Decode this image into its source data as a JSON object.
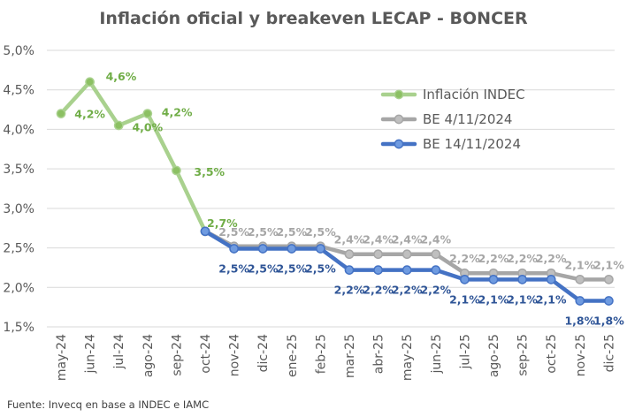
{
  "chart_data": {
    "type": "line",
    "title": "Inflación oficial y breakeven LECAP - BONCER",
    "source": "Fuente: Invecq en base a INDEC e IAMC",
    "categories": [
      "may-24",
      "jun-24",
      "jul-24",
      "ago-24",
      "sep-24",
      "oct-24",
      "nov-24",
      "dic-24",
      "ene-25",
      "feb-25",
      "mar-25",
      "abr-25",
      "may-25",
      "jun-25",
      "jul-25",
      "ago-25",
      "sep-25",
      "oct-25",
      "nov-25",
      "dic-25"
    ],
    "ylim": [
      1.5,
      5.0
    ],
    "y_ticks": [
      1.5,
      2.0,
      2.5,
      3.0,
      3.5,
      4.0,
      4.5,
      5.0
    ],
    "y_tick_labels": [
      "1,5%",
      "2,0%",
      "2,5%",
      "3,0%",
      "3,5%",
      "4,0%",
      "4,5%",
      "5,0%"
    ],
    "grid": true,
    "legend_position": "top-right",
    "series": [
      {
        "name": "Inflación INDEC",
        "color": "#a9d18e",
        "marker_color": "#8cc063",
        "label_color": "#70ad47",
        "values": [
          4.2,
          4.6,
          4.05,
          4.2,
          3.48,
          2.71,
          null,
          null,
          null,
          null,
          null,
          null,
          null,
          null,
          null,
          null,
          null,
          null,
          null,
          null
        ],
        "labels": [
          "",
          "4,6%",
          "",
          "4,2%",
          "3,5%",
          "2,7%",
          "",
          "",
          "",
          "",
          "",
          "",
          "",
          "",
          "",
          "",
          "",
          "",
          "",
          ""
        ]
      },
      {
        "name": "BE 4/11/2024",
        "color": "#a6a6a6",
        "marker_color": "#bfbfbf",
        "label_color": "#a6a6a6",
        "values": [
          null,
          null,
          null,
          null,
          null,
          2.71,
          2.52,
          2.52,
          2.52,
          2.52,
          2.42,
          2.42,
          2.42,
          2.42,
          2.18,
          2.18,
          2.18,
          2.18,
          2.1,
          2.1
        ],
        "labels": [
          "",
          "",
          "",
          "",
          "",
          "",
          "2,5%",
          "2,5%",
          "2,5%",
          "2,5%",
          "2,4%",
          "2,4%",
          "2,4%",
          "2,4%",
          "2,2%",
          "2,2%",
          "2,2%",
          "2,2%",
          "2,1%",
          "2,1%"
        ]
      },
      {
        "name": "BE 14/11/2024",
        "color": "#4472c4",
        "marker_color": "#6f9be0",
        "label_color": "#2f5597",
        "values": [
          null,
          null,
          null,
          null,
          null,
          2.71,
          2.49,
          2.49,
          2.49,
          2.49,
          2.22,
          2.22,
          2.22,
          2.22,
          2.1,
          2.1,
          2.1,
          2.1,
          1.83,
          1.83
        ],
        "labels": [
          "",
          "",
          "",
          "",
          "",
          "",
          "2,5%",
          "2,5%",
          "2,5%",
          "2,5%",
          "2,2%",
          "2,2%",
          "2,2%",
          "2,2%",
          "2,1%",
          "2,1%",
          "2,1%",
          "2,1%",
          "1,8%",
          "1,8%"
        ]
      }
    ],
    "extra_labels": [
      {
        "text": "4,2%",
        "category": "jun-24",
        "color": "#70ad47"
      },
      {
        "text": "4,0%",
        "category": "ago-24",
        "color": "#70ad47"
      }
    ]
  }
}
